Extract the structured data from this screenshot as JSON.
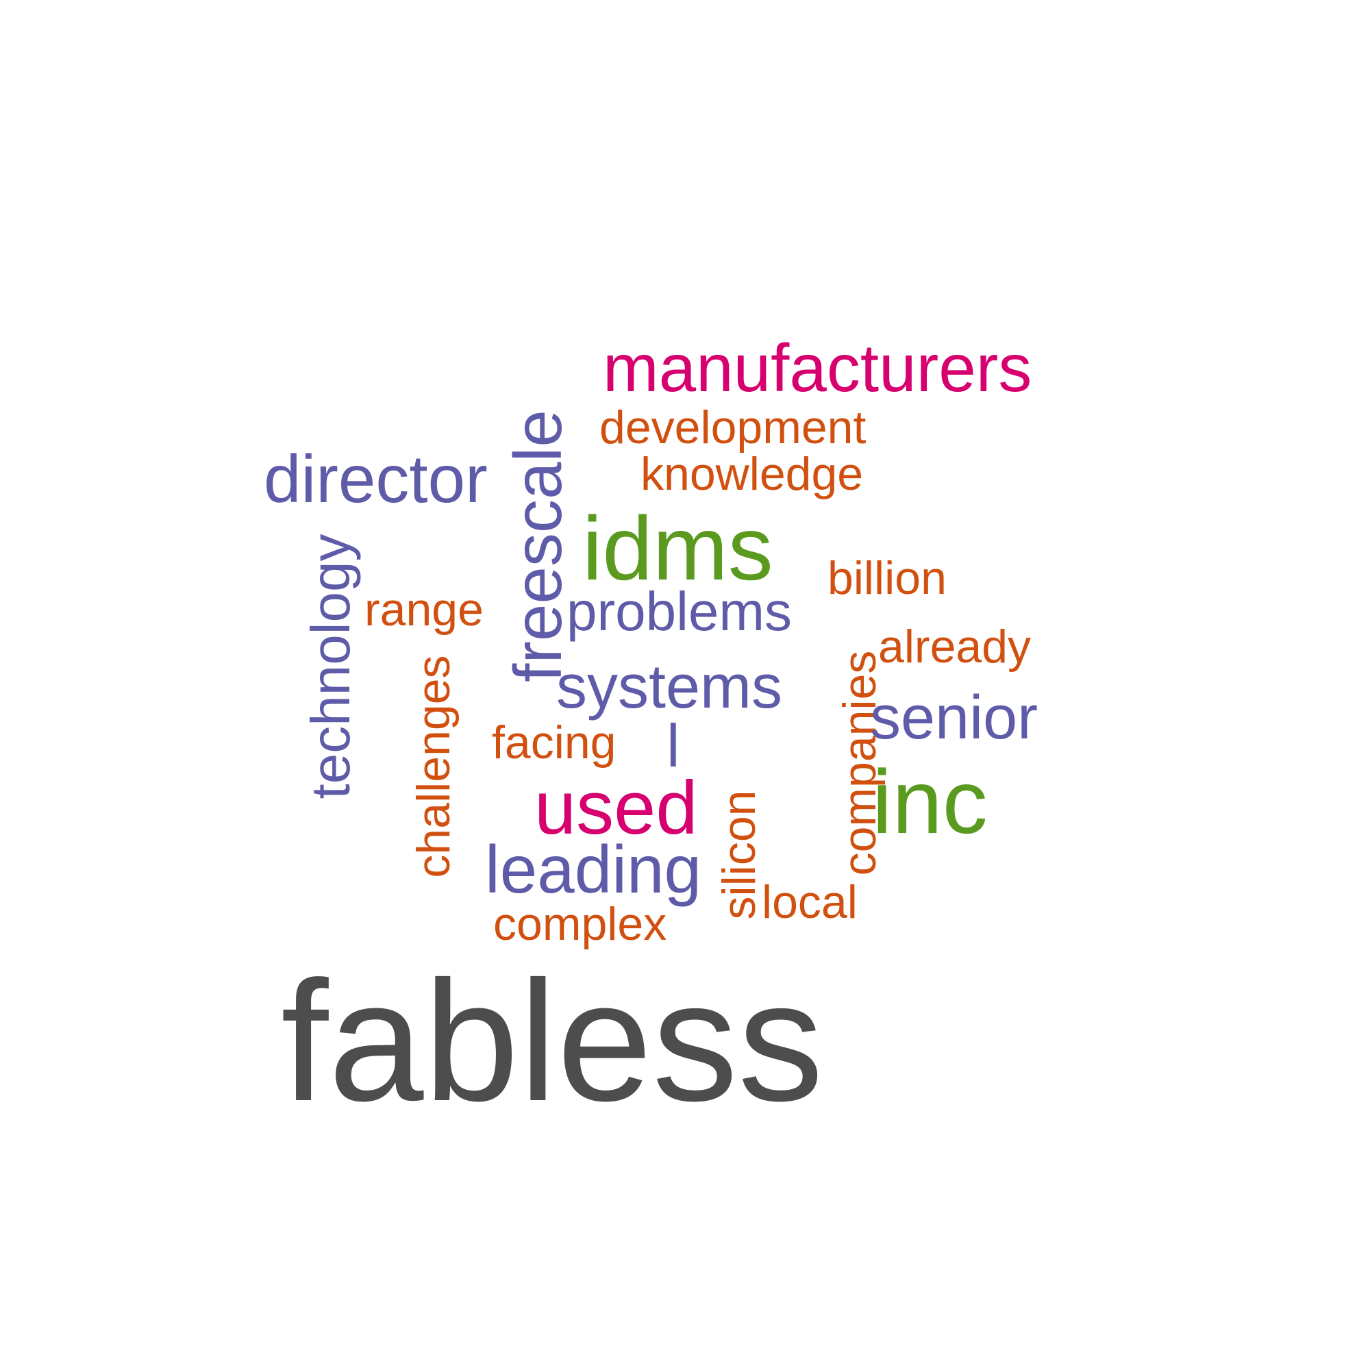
{
  "palette": {
    "magenta": "#d6006f",
    "orange": "#d1500f",
    "purple": "#5e5ba8",
    "green": "#5a9a1e",
    "gray": "#4d4d4d"
  },
  "words": {
    "manufacturers": {
      "text": "manufacturers",
      "color": "#d6006f"
    },
    "development": {
      "text": "development",
      "color": "#d1500f"
    },
    "knowledge": {
      "text": "knowledge",
      "color": "#d1500f"
    },
    "director": {
      "text": "director",
      "color": "#5e5ba8"
    },
    "freescale": {
      "text": "freescale",
      "color": "#5e5ba8"
    },
    "idms": {
      "text": "idms",
      "color": "#5a9a1e"
    },
    "billion": {
      "text": "billion",
      "color": "#d1500f"
    },
    "technology": {
      "text": "technology",
      "color": "#5e5ba8"
    },
    "range": {
      "text": "range",
      "color": "#d1500f"
    },
    "problems": {
      "text": "problems",
      "color": "#5e5ba8"
    },
    "already": {
      "text": "already",
      "color": "#d1500f"
    },
    "companies": {
      "text": "companies",
      "color": "#d1500f"
    },
    "challenges": {
      "text": "challenges",
      "color": "#d1500f"
    },
    "systems": {
      "text": "systems",
      "color": "#5e5ba8"
    },
    "senior": {
      "text": "senior",
      "color": "#5e5ba8"
    },
    "facing": {
      "text": "facing",
      "color": "#d1500f"
    },
    "l": {
      "text": "l",
      "color": "#5e5ba8"
    },
    "inc": {
      "text": "inc",
      "color": "#5a9a1e"
    },
    "used": {
      "text": "used",
      "color": "#d6006f"
    },
    "silicon": {
      "text": "silicon",
      "color": "#d1500f"
    },
    "leading": {
      "text": "leading",
      "color": "#5e5ba8"
    },
    "local": {
      "text": "local",
      "color": "#d1500f"
    },
    "complex": {
      "text": "complex",
      "color": "#d1500f"
    },
    "fabless": {
      "text": "fabless",
      "color": "#4d4d4d"
    }
  }
}
